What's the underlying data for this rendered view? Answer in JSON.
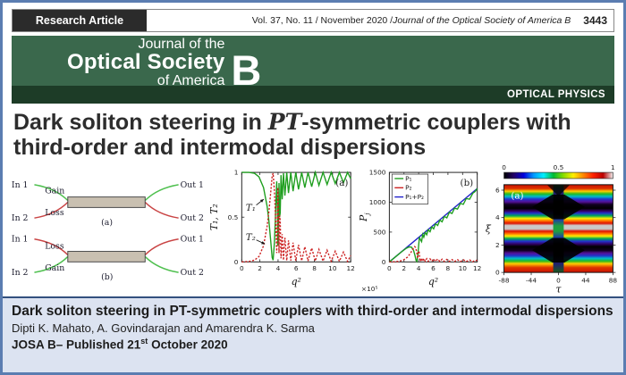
{
  "header": {
    "badge": "Research Article",
    "issue_prefix": "Vol. 37, No. 11 / November 2020 / ",
    "journal_italic": "Journal of the Optical Society of America B",
    "page_number": "3443"
  },
  "banner": {
    "logo_top": "Journal of the",
    "logo_main": "Optical Society",
    "logo_bottom": "of America",
    "logo_letter": "B",
    "section": "OPTICAL PHYSICS",
    "colors": {
      "banner_green": "#3a684c",
      "banner_dark_green": "#1d3c27"
    }
  },
  "title": {
    "part1": "Dark soliton steering in ",
    "pt": "PT",
    "part2": "-symmetric couplers with third-order and intermodal dispersions"
  },
  "coupler_figure": {
    "colors": {
      "arm_green": "#4fc04f",
      "arm_red": "#c94444",
      "coupler_fill": "#c9c0b1"
    },
    "panels": [
      {
        "label": "(a)",
        "inputs": [
          "In 1",
          "In 2"
        ],
        "outputs": [
          "Out 1",
          "Out 2"
        ],
        "arm_labels": [
          "Gain",
          "Loss"
        ]
      },
      {
        "label": "(b)",
        "inputs": [
          "In 1",
          "In 2"
        ],
        "outputs": [
          "Out 1",
          "Out 2"
        ],
        "arm_labels": [
          "Loss",
          "Gain"
        ]
      }
    ]
  },
  "chart_data": [
    {
      "id": "transmission",
      "type": "line",
      "panel_label": "(a)",
      "xlabel": "q²",
      "ylabel": "T₁, T₂",
      "xlim": [
        0,
        12
      ],
      "ylim": [
        0,
        1
      ],
      "xticks": [
        0,
        2,
        4,
        6,
        8,
        10,
        12
      ],
      "yticks": [
        0,
        0.5,
        1
      ],
      "annotations": [
        {
          "text": "T₁",
          "tx": 0.45,
          "ty": 0.6,
          "x1": 1.6,
          "y1": 0.635,
          "x2": 2.42,
          "y2": 0.7
        },
        {
          "text": "T₂",
          "tx": 0.45,
          "ty": 0.27,
          "x1": 1.6,
          "y1": 0.245,
          "x2": 2.55,
          "y2": 0.2
        }
      ],
      "series": [
        {
          "name": "T₁",
          "color": "#1e9e1e",
          "style": "solid",
          "points": [
            [
              0,
              1
            ],
            [
              0.8,
              1
            ],
            [
              1.4,
              0.99
            ],
            [
              1.9,
              0.95
            ],
            [
              2.4,
              0.83
            ],
            [
              2.8,
              0.62
            ],
            [
              3.0,
              0.45
            ],
            [
              3.2,
              0.22
            ],
            [
              3.35,
              0.05
            ],
            [
              3.45,
              0.02
            ],
            [
              3.6,
              0.22
            ],
            [
              3.75,
              0.62
            ],
            [
              3.85,
              0.9
            ],
            [
              3.92,
              0.62
            ],
            [
              3.98,
              0.18
            ],
            [
              4.04,
              0.45
            ],
            [
              4.1,
              0.88
            ],
            [
              4.17,
              0.5
            ],
            [
              4.24,
              0.55
            ],
            [
              4.33,
              0.97
            ],
            [
              4.45,
              0.7
            ],
            [
              4.6,
              0.99
            ],
            [
              4.75,
              0.74
            ],
            [
              4.95,
              1.0
            ],
            [
              5.15,
              0.77
            ],
            [
              5.4,
              1.0
            ],
            [
              5.65,
              0.79
            ],
            [
              5.95,
              1.0
            ],
            [
              6.25,
              0.81
            ],
            [
              6.6,
              1.0
            ],
            [
              6.95,
              0.83
            ],
            [
              7.3,
              1.0
            ],
            [
              7.7,
              0.84
            ],
            [
              8.1,
              1.0
            ],
            [
              8.5,
              0.855
            ],
            [
              8.95,
              1.0
            ],
            [
              9.4,
              0.865
            ],
            [
              9.85,
              1.0
            ],
            [
              10.3,
              0.875
            ],
            [
              10.75,
              1.0
            ],
            [
              11.2,
              0.885
            ],
            [
              11.65,
              1.0
            ],
            [
              12,
              0.93
            ]
          ]
        },
        {
          "name": "T₂",
          "color": "#cc2020",
          "style": "dashdot",
          "points": [
            [
              0,
              0
            ],
            [
              0.8,
              0.005
            ],
            [
              1.4,
              0.02
            ],
            [
              1.9,
              0.06
            ],
            [
              2.4,
              0.18
            ],
            [
              2.8,
              0.4
            ],
            [
              3.0,
              0.57
            ],
            [
              3.2,
              0.79
            ],
            [
              3.35,
              0.96
            ],
            [
              3.45,
              0.99
            ],
            [
              3.6,
              0.79
            ],
            [
              3.75,
              0.4
            ],
            [
              3.85,
              0.1
            ],
            [
              3.92,
              0.4
            ],
            [
              3.98,
              0.83
            ],
            [
              4.04,
              0.56
            ],
            [
              4.1,
              0.1
            ],
            [
              4.17,
              0.52
            ],
            [
              4.24,
              0.46
            ],
            [
              4.33,
              0.04
            ],
            [
              4.45,
              0.31
            ],
            [
              4.6,
              0.02
            ],
            [
              4.75,
              0.27
            ],
            [
              4.95,
              0.015
            ],
            [
              5.15,
              0.24
            ],
            [
              5.4,
              0.015
            ],
            [
              5.65,
              0.215
            ],
            [
              5.95,
              0.013
            ],
            [
              6.25,
              0.19
            ],
            [
              6.6,
              0.012
            ],
            [
              6.95,
              0.17
            ],
            [
              7.3,
              0.011
            ],
            [
              7.7,
              0.155
            ],
            [
              8.1,
              0.01
            ],
            [
              8.5,
              0.14
            ],
            [
              8.95,
              0.009
            ],
            [
              9.4,
              0.13
            ],
            [
              9.85,
              0.008
            ],
            [
              10.3,
              0.12
            ],
            [
              10.75,
              0.007
            ],
            [
              11.2,
              0.11
            ],
            [
              11.65,
              0.006
            ],
            [
              12,
              0.07
            ]
          ]
        }
      ]
    },
    {
      "id": "power",
      "type": "line",
      "panel_label": "(b)",
      "xlabel": "q²",
      "ylabel_base": "P",
      "ylabel_sub": "j",
      "xlim": [
        0,
        12
      ],
      "ylim": [
        0,
        1500
      ],
      "xticks": [
        0,
        2,
        4,
        6,
        8,
        10,
        12
      ],
      "yticks": [
        0,
        500,
        1000,
        1500
      ],
      "legend": [
        {
          "label": "P₁",
          "color": "#1e9e1e"
        },
        {
          "label": "P₂",
          "color": "#cc2020"
        },
        {
          "label": "P₁+P₂",
          "color": "#2020cc"
        }
      ],
      "stray_label": "×10⁵",
      "series": [
        {
          "name": "P₁+P₂",
          "color": "#2020cc",
          "style": "solid",
          "points": [
            [
              0,
              0
            ],
            [
              12,
              1230
            ]
          ]
        },
        {
          "name": "P₁",
          "color": "#1e9e1e",
          "style": "solid",
          "points": [
            [
              0,
              0
            ],
            [
              0.6,
              60
            ],
            [
              1.2,
              122
            ],
            [
              1.8,
              182
            ],
            [
              2.3,
              228
            ],
            [
              2.7,
              252
            ],
            [
              3.0,
              248
            ],
            [
              3.3,
              195
            ],
            [
              3.5,
              105
            ],
            [
              3.65,
              25
            ],
            [
              3.75,
              8
            ],
            [
              3.9,
              120
            ],
            [
              4.0,
              270
            ],
            [
              4.1,
              415
            ],
            [
              4.25,
              372
            ],
            [
              4.4,
              340
            ],
            [
              4.55,
              462
            ],
            [
              4.7,
              415
            ],
            [
              4.9,
              496
            ],
            [
              5.1,
              455
            ],
            [
              5.3,
              538
            ],
            [
              5.55,
              505
            ],
            [
              5.8,
              588
            ],
            [
              6.05,
              555
            ],
            [
              6.3,
              638
            ],
            [
              6.6,
              610
            ],
            [
              6.9,
              700
            ],
            [
              7.2,
              672
            ],
            [
              7.5,
              762
            ],
            [
              7.85,
              738
            ],
            [
              8.2,
              832
            ],
            [
              8.55,
              812
            ],
            [
              8.9,
              902
            ],
            [
              9.3,
              885
            ],
            [
              9.7,
              980
            ],
            [
              10.1,
              965
            ],
            [
              10.5,
              1062
            ],
            [
              10.95,
              1050
            ],
            [
              11.4,
              1152
            ],
            [
              11.7,
              1178
            ],
            [
              12,
              1230
            ]
          ]
        },
        {
          "name": "P₂",
          "color": "#cc2020",
          "style": "dashdot",
          "points": [
            [
              0,
              0
            ],
            [
              0.8,
              3
            ],
            [
              1.4,
              12
            ],
            [
              2.0,
              38
            ],
            [
              2.5,
              82
            ],
            [
              2.9,
              148
            ],
            [
              3.2,
              215
            ],
            [
              3.45,
              258
            ],
            [
              3.6,
              240
            ],
            [
              3.75,
              150
            ],
            [
              3.85,
              60
            ],
            [
              3.95,
              150
            ],
            [
              4.05,
              185
            ],
            [
              4.15,
              60
            ],
            [
              4.25,
              8
            ],
            [
              4.4,
              62
            ],
            [
              4.55,
              10
            ],
            [
              4.7,
              58
            ],
            [
              4.9,
              12
            ],
            [
              5.1,
              55
            ],
            [
              5.3,
              10
            ],
            [
              5.55,
              52
            ],
            [
              5.8,
              10
            ],
            [
              6.05,
              50
            ],
            [
              6.3,
              9
            ],
            [
              6.6,
              48
            ],
            [
              6.9,
              8
            ],
            [
              7.2,
              45
            ],
            [
              7.5,
              8
            ],
            [
              7.85,
              42
            ],
            [
              8.2,
              7
            ],
            [
              8.55,
              40
            ],
            [
              8.9,
              7
            ],
            [
              9.3,
              38
            ],
            [
              9.7,
              6
            ],
            [
              10.1,
              35
            ],
            [
              10.5,
              6
            ],
            [
              10.95,
              32
            ],
            [
              11.4,
              5
            ],
            [
              11.7,
              28
            ],
            [
              12,
              22
            ]
          ]
        }
      ]
    },
    {
      "id": "evolution",
      "type": "heatmap",
      "panel_label": "(a)",
      "xlabel": "τ",
      "ylabel": "ξ",
      "xlim": [
        -88,
        88
      ],
      "ylim": [
        0,
        6.4
      ],
      "xticks": [
        -88,
        -44,
        0,
        44,
        88
      ],
      "yticks": [
        0,
        2,
        4,
        6
      ],
      "colorbar_ticks": [
        "0",
        "0.5",
        "1"
      ],
      "colorbar_colors": [
        "#000000",
        "#220066",
        "#0000dd",
        "#0099ff",
        "#00eeff",
        "#00bb33",
        "#88dd00",
        "#ffee00",
        "#ff8800",
        "#ff2200",
        "#bb0000",
        "#eeeeee"
      ],
      "fringe_stops": [
        [
          0,
          "#cc1100"
        ],
        [
          0.045,
          "#dd3300"
        ],
        [
          0.075,
          "#ffcc00"
        ],
        [
          0.105,
          "#22bb22"
        ],
        [
          0.135,
          "#00bbcc"
        ],
        [
          0.165,
          "#2233cc"
        ],
        [
          0.195,
          "#551199"
        ],
        [
          0.225,
          "#110022"
        ],
        [
          0.27,
          "#000000"
        ],
        [
          0.3,
          "#330066"
        ],
        [
          0.325,
          "#2233cc"
        ],
        [
          0.355,
          "#00aa55"
        ],
        [
          0.385,
          "#ffee00"
        ],
        [
          0.415,
          "#ff6600"
        ],
        [
          0.44,
          "#dd1100"
        ],
        [
          0.465,
          "#cccccc"
        ],
        [
          0.505,
          "#c8c8c8"
        ],
        [
          0.53,
          "#dd1100"
        ],
        [
          0.555,
          "#ff6600"
        ],
        [
          0.585,
          "#ffee00"
        ],
        [
          0.615,
          "#00aa55"
        ],
        [
          0.645,
          "#2233cc"
        ],
        [
          0.675,
          "#330066"
        ],
        [
          0.705,
          "#000000"
        ],
        [
          0.75,
          "#110022"
        ],
        [
          0.78,
          "#551199"
        ],
        [
          0.81,
          "#2233cc"
        ],
        [
          0.84,
          "#00bbcc"
        ],
        [
          0.87,
          "#22bb22"
        ],
        [
          0.9,
          "#ffcc00"
        ],
        [
          0.945,
          "#dd3300"
        ],
        [
          1.0,
          "#cc1100"
        ]
      ],
      "center_stops": [
        [
          0,
          "#1c5a1c"
        ],
        [
          0.1,
          "#202070"
        ],
        [
          0.2,
          "#000000"
        ],
        [
          0.33,
          "#000000"
        ],
        [
          0.4,
          "#2040a0"
        ],
        [
          0.47,
          "#20a040"
        ],
        [
          0.53,
          "#20a040"
        ],
        [
          0.6,
          "#2040a0"
        ],
        [
          0.68,
          "#000000"
        ],
        [
          0.8,
          "#000000"
        ],
        [
          0.9,
          "#202070"
        ],
        [
          1,
          "#1c5a1c"
        ]
      ],
      "dark_cross_xi": [
        4.78,
        1.62
      ],
      "description": "Dark soliton intensity evolution: horizontal rainbow interference fringes with a dark X-shaped core channel at τ = 0"
    }
  ],
  "footer": {
    "bold_title": "Dark soliton steering in PT-symmetric couplers with third-order and intermodal dispersions",
    "authors": "Dipti K. Mahato, A. Govindarajan and Amarendra K. Sarma",
    "published_prefix": " JOSA B– Published 21",
    "published_sup": "st",
    "published_suffix": " October 2020"
  }
}
